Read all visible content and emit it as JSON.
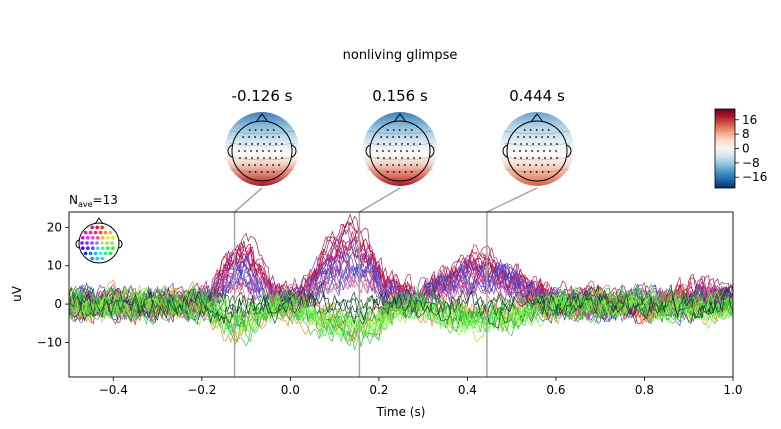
{
  "figure": {
    "suptitle": "nonliving glimpse",
    "nave_prefix": "N",
    "nave_sub": "ave",
    "nave_value": "=13"
  },
  "topomaps": [
    {
      "time": -0.126,
      "label": "-0.126 s",
      "front": "blue",
      "back": "red"
    },
    {
      "time": 0.156,
      "label": "0.156 s",
      "front": "blue",
      "back": "red"
    },
    {
      "time": 0.444,
      "label": "0.444 s",
      "front": "lightblue",
      "back": "salmon"
    }
  ],
  "colorbar": {
    "ticks": [
      16,
      8,
      0,
      -8,
      -16
    ],
    "tick_labels": [
      "16",
      "8",
      "0",
      "−8",
      "−16"
    ],
    "vmin": -22,
    "vmax": 22,
    "cmap_colors": [
      "#053061",
      "#2166ac",
      "#4393c3",
      "#92c5de",
      "#d1e5f0",
      "#f7f7f7",
      "#fddbc7",
      "#f4a582",
      "#d6604d",
      "#b2182b",
      "#67001f"
    ]
  },
  "chart_data": {
    "type": "line",
    "title": "",
    "xlabel": "Time (s)",
    "ylabel": "uV",
    "xlim": [
      -0.5,
      1.0
    ],
    "ylim": [
      -19,
      24
    ],
    "xticks": [
      -0.4,
      -0.2,
      0.0,
      0.2,
      0.4,
      0.6,
      0.8,
      1.0
    ],
    "xtick_labels": [
      "−0.4",
      "−0.2",
      "0.0",
      "0.2",
      "0.4",
      "0.6",
      "0.8",
      "1.0"
    ],
    "yticks": [
      -10,
      0,
      10,
      20
    ],
    "ytick_labels": [
      "−10",
      "0",
      "10",
      "20"
    ],
    "markers": [
      -0.126,
      0.156,
      0.444
    ],
    "grid": false,
    "legend": "sensor-location head inset, top-left",
    "series_groups": [
      {
        "color": "#a50f3c",
        "count": 6,
        "peak1": 14,
        "peak2": 17,
        "peak3": 10,
        "late": 3
      },
      {
        "color": "#c2185b",
        "count": 5,
        "peak1": 11,
        "peak2": 13,
        "peak3": 9,
        "late": 2
      },
      {
        "color": "#6a3fc8",
        "count": 5,
        "peak1": 9,
        "peak2": 12,
        "peak3": 8,
        "late": 1
      },
      {
        "color": "#3b4fd1",
        "count": 4,
        "peak1": 6,
        "peak2": 8,
        "peak3": 7,
        "late": 0
      },
      {
        "color": "#e65c8a",
        "count": 3,
        "peak1": 4,
        "peak2": 6,
        "peak3": 5,
        "late": 1
      },
      {
        "color": "#1b5e20",
        "count": 3,
        "peak1": -2,
        "peak2": -3,
        "peak3": -2,
        "late": 0
      },
      {
        "color": "#f28c28",
        "count": 3,
        "peak1": -7,
        "peak2": -6,
        "peak3": -3,
        "late": -1
      },
      {
        "color": "#2ecc40",
        "count": 6,
        "peak1": -6,
        "peak2": -8,
        "peak3": -4,
        "late": -1
      },
      {
        "color": "#7cff3a",
        "count": 4,
        "peak1": -4,
        "peak2": -6,
        "peak3": -5,
        "late": -2
      },
      {
        "color": "#0d3b2e",
        "count": 2,
        "peak1": -1,
        "peak2": 0,
        "peak3": -1,
        "late": 0
      }
    ]
  }
}
